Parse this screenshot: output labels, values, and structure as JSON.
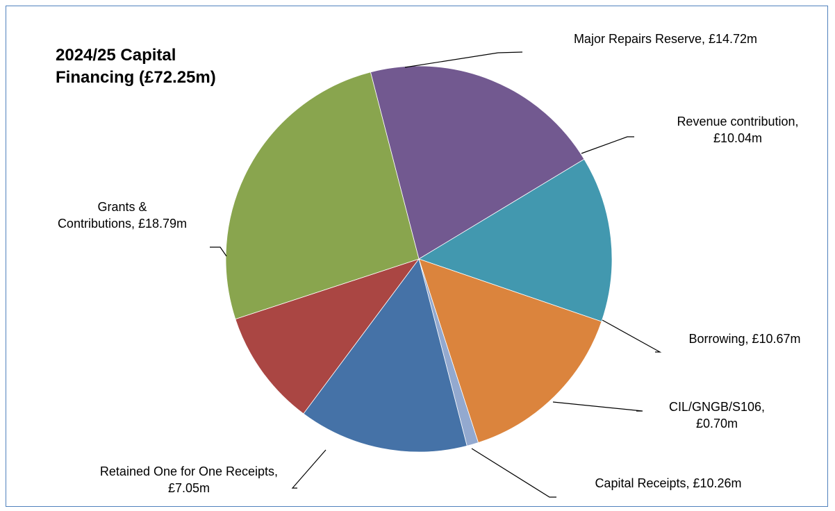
{
  "chart_data": {
    "type": "pie",
    "title": "2024/25 Capital\nFinancing (£72.25m)",
    "unit": "£m",
    "slices": [
      {
        "label": "Major Repairs Reserve, £14.72m",
        "value": 14.72,
        "color": "#725990"
      },
      {
        "label": "Revenue contribution,\n£10.04m",
        "value": 10.04,
        "color": "#4298af"
      },
      {
        "label": "Borrowing, £10.67m",
        "value": 10.67,
        "color": "#db843d"
      },
      {
        "label": "CIL/GNGB/S106,\n£0.70m",
        "value": 0.7,
        "color": "#93a9cf"
      },
      {
        "label": "Capital Receipts, £10.26m",
        "value": 10.26,
        "color": "#4572a7"
      },
      {
        "label": "Retained One for One Receipts,\n£7.05m",
        "value": 7.05,
        "color": "#aa4643"
      },
      {
        "label": "Grants &\nContributions, £18.79m",
        "value": 18.79,
        "color": "#89a54e"
      }
    ],
    "legend": "none",
    "data_labels": "outside-with-leader-lines"
  }
}
